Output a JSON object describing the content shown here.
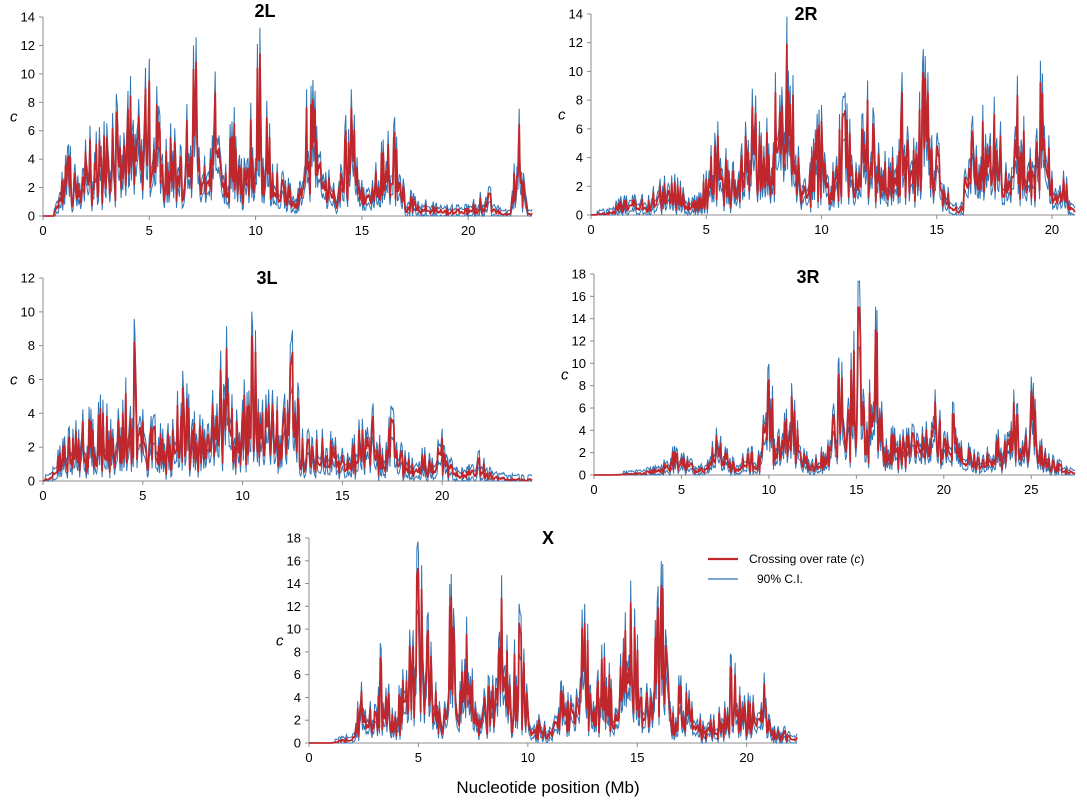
{
  "colors": {
    "rate": "#c0272d",
    "ci": "#2e75b6",
    "axis": "#8c8c8c"
  },
  "legend": {
    "rate_label": "Crossing over rate (",
    "rate_italic": "c",
    "rate_close": ")",
    "ci_label": "90% C.I."
  },
  "x_axis_label": "Nucleotide position (Mb)",
  "chart_data": [
    {
      "type": "line",
      "title": "2L",
      "ylabel": "c",
      "xlim": [
        0,
        23
      ],
      "ylim": [
        0,
        14
      ],
      "xticks": [
        0,
        5,
        10,
        15,
        20
      ],
      "yticks": [
        0,
        2,
        4,
        6,
        8,
        10,
        12,
        14
      ],
      "series": [
        {
          "name": "Crossing over rate (c)",
          "role": "rate",
          "x": [
            0,
            0.5,
            0.9,
            1.2,
            1.5,
            2.0,
            2.5,
            3.0,
            3.5,
            4.0,
            4.5,
            5.0,
            5.5,
            6.0,
            6.5,
            7.2,
            7.6,
            8.1,
            8.6,
            9.0,
            9.5,
            10.2,
            10.8,
            11.4,
            12.0,
            12.4,
            12.8,
            13.3,
            14.0,
            14.5,
            15.0,
            15.5,
            16.0,
            16.5,
            17.0,
            17.5,
            18.0,
            18.5,
            19.0,
            19.5,
            20.0,
            21.0,
            21.5,
            22.0,
            22.4,
            22.8,
            23.0
          ],
          "y": [
            0,
            0,
            2.5,
            4.2,
            3.0,
            4.5,
            5.0,
            5.5,
            6.5,
            7.5,
            7.0,
            9.5,
            6.0,
            5.5,
            4.0,
            10.8,
            3.5,
            8.7,
            3.0,
            6.5,
            3.0,
            11.4,
            3.0,
            2.0,
            1.5,
            7.6,
            7.5,
            2.5,
            3.0,
            7.6,
            2.0,
            2.0,
            4.5,
            5.5,
            1.5,
            1.0,
            0.8,
            0.6,
            0.5,
            0.4,
            0.5,
            1.6,
            0.3,
            0.2,
            6.4,
            0.2,
            0.2
          ]
        },
        {
          "name": "90% C.I.",
          "role": "ci"
        }
      ]
    },
    {
      "type": "line",
      "title": "2R",
      "ylabel": "c",
      "xlim": [
        0,
        21
      ],
      "ylim": [
        0,
        14
      ],
      "xticks": [
        0,
        5,
        10,
        15,
        20
      ],
      "yticks": [
        0,
        2,
        4,
        6,
        8,
        10,
        12,
        14
      ],
      "series": [
        {
          "name": "Crossing over rate (c)",
          "role": "rate",
          "x": [
            0,
            0.8,
            1.2,
            1.8,
            2.5,
            3.0,
            3.5,
            4.0,
            4.5,
            5.0,
            5.5,
            6.0,
            6.5,
            7.0,
            7.5,
            8.0,
            8.5,
            9.0,
            9.5,
            10.0,
            10.5,
            11.0,
            11.5,
            12.0,
            12.5,
            13.0,
            13.5,
            14.0,
            14.5,
            15.0,
            15.5,
            16.0,
            16.5,
            17.0,
            17.5,
            18.0,
            18.5,
            19.0,
            19.5,
            20.0,
            20.5,
            21.0
          ],
          "y": [
            0,
            0.2,
            0.8,
            1.0,
            1.0,
            2.0,
            2.2,
            1.5,
            1.0,
            2.5,
            5.5,
            2.5,
            3.5,
            7.5,
            4.0,
            8.5,
            11.9,
            4.0,
            3.0,
            6.5,
            3.0,
            7.0,
            3.0,
            8.0,
            3.5,
            3.0,
            8.5,
            4.5,
            9.5,
            4.5,
            1.5,
            0.3,
            5.0,
            6.5,
            7.0,
            3.0,
            8.3,
            3.0,
            9.2,
            2.5,
            2.5,
            0.2
          ]
        },
        {
          "name": "90% C.I.",
          "role": "ci"
        }
      ]
    },
    {
      "type": "line",
      "title": "3L",
      "ylabel": "c",
      "xlim": [
        0,
        24.5
      ],
      "ylim": [
        0,
        12
      ],
      "xticks": [
        0,
        5,
        10,
        15,
        20
      ],
      "yticks": [
        0,
        2,
        4,
        6,
        8,
        10,
        12
      ],
      "series": [
        {
          "name": "Crossing over rate (c)",
          "role": "rate",
          "x": [
            0,
            0.5,
            1.0,
            1.5,
            2.0,
            2.5,
            3.0,
            3.5,
            4.0,
            4.6,
            5.0,
            5.5,
            6.0,
            6.5,
            7.0,
            7.5,
            8.0,
            8.5,
            9.2,
            9.7,
            10.0,
            10.5,
            11.0,
            11.5,
            12.0,
            12.5,
            13.0,
            13.5,
            14.0,
            14.5,
            15.0,
            15.5,
            16.0,
            16.5,
            17.0,
            17.5,
            18.0,
            18.5,
            19.0,
            19.5,
            20.0,
            20.5,
            21.0,
            21.8,
            22.5,
            23.0,
            24.0,
            24.5
          ],
          "y": [
            0,
            0.5,
            2.0,
            2.5,
            3.5,
            3.0,
            4.0,
            2.5,
            4.0,
            7.6,
            3.5,
            3.0,
            2.5,
            3.0,
            5.5,
            3.0,
            3.0,
            4.5,
            7.8,
            3.5,
            4.0,
            7.8,
            4.0,
            4.5,
            3.0,
            7.6,
            2.5,
            2.0,
            2.5,
            2.0,
            1.5,
            2.0,
            3.0,
            3.5,
            1.5,
            3.5,
            1.5,
            1.0,
            1.5,
            1.0,
            2.5,
            0.8,
            0.5,
            1.3,
            0.3,
            0.2,
            0.1,
            0.1
          ]
        },
        {
          "name": "90% C.I.",
          "role": "ci"
        }
      ]
    },
    {
      "type": "line",
      "title": "3R",
      "ylabel": "c",
      "xlim": [
        0,
        27.5
      ],
      "ylim": [
        0,
        18
      ],
      "xticks": [
        0,
        5,
        10,
        15,
        20,
        25
      ],
      "yticks": [
        0,
        2,
        4,
        6,
        8,
        10,
        12,
        14,
        16,
        18
      ],
      "series": [
        {
          "name": "Crossing over rate (c)",
          "role": "rate",
          "x": [
            0,
            1.0,
            2.0,
            3.0,
            3.5,
            4.0,
            4.5,
            5.0,
            5.5,
            6.0,
            6.5,
            7.0,
            7.5,
            8.0,
            8.5,
            9.0,
            9.5,
            10.0,
            10.5,
            11.0,
            11.3,
            11.8,
            12.5,
            13.0,
            13.5,
            14.0,
            14.5,
            15.1,
            15.6,
            16.1,
            16.6,
            17.0,
            17.5,
            18.0,
            18.5,
            19.0,
            19.5,
            20.0,
            20.5,
            21.0,
            21.5,
            22.0,
            22.5,
            23.0,
            23.5,
            24.0,
            24.5,
            25.0,
            25.5,
            26.0,
            26.5,
            27.0,
            27.5
          ],
          "y": [
            0,
            0,
            0.1,
            0.3,
            0.5,
            1.0,
            2.0,
            1.5,
            1.0,
            0.5,
            1.0,
            3.5,
            2.0,
            1.0,
            1.5,
            2.0,
            1.5,
            8.5,
            3.0,
            5.0,
            7.0,
            2.0,
            1.0,
            2.0,
            2.5,
            9.0,
            5.0,
            15.0,
            4.0,
            13.0,
            2.0,
            3.5,
            3.0,
            3.5,
            3.0,
            4.0,
            6.5,
            3.0,
            5.5,
            2.5,
            2.0,
            1.5,
            2.0,
            3.0,
            3.0,
            6.5,
            2.5,
            7.5,
            2.5,
            1.5,
            1.0,
            0.5,
            0.1
          ]
        },
        {
          "name": "90% C.I.",
          "role": "ci"
        }
      ]
    },
    {
      "type": "line",
      "title": "X",
      "ylabel": "c",
      "xlim": [
        0,
        22.3
      ],
      "ylim": [
        0,
        18
      ],
      "xticks": [
        0,
        5,
        10,
        15,
        20
      ],
      "yticks": [
        0,
        2,
        4,
        6,
        8,
        10,
        12,
        14,
        16,
        18
      ],
      "series": [
        {
          "name": "Crossing over rate (c)",
          "role": "rate",
          "x": [
            0,
            1.0,
            1.5,
            2.0,
            2.4,
            2.8,
            3.3,
            3.8,
            4.2,
            4.6,
            5.0,
            5.4,
            5.8,
            6.2,
            6.5,
            6.8,
            7.2,
            7.6,
            8.0,
            8.4,
            8.8,
            9.2,
            9.6,
            10.0,
            10.5,
            11.0,
            11.5,
            12.0,
            12.6,
            13.0,
            13.5,
            14.0,
            14.7,
            15.2,
            15.6,
            16.1,
            16.5,
            17.0,
            17.5,
            18.0,
            18.5,
            19.0,
            19.3,
            19.8,
            20.3,
            20.8,
            21.2,
            21.7,
            22.3
          ],
          "y": [
            0,
            0,
            0.3,
            0.5,
            4.5,
            3.0,
            7.0,
            2.5,
            4.0,
            8.5,
            14.5,
            9.5,
            4.5,
            3.0,
            12.8,
            2.0,
            9.5,
            3.0,
            4.0,
            5.0,
            12.7,
            4.0,
            10.5,
            3.0,
            2.0,
            1.0,
            4.5,
            3.0,
            10.5,
            3.0,
            7.5,
            2.5,
            12.3,
            4.0,
            4.0,
            13.8,
            3.0,
            5.0,
            3.0,
            1.5,
            2.0,
            3.0,
            6.5,
            3.0,
            3.5,
            5.2,
            1.0,
            1.0,
            0.5
          ]
        },
        {
          "name": "90% C.I.",
          "role": "ci"
        }
      ]
    }
  ]
}
